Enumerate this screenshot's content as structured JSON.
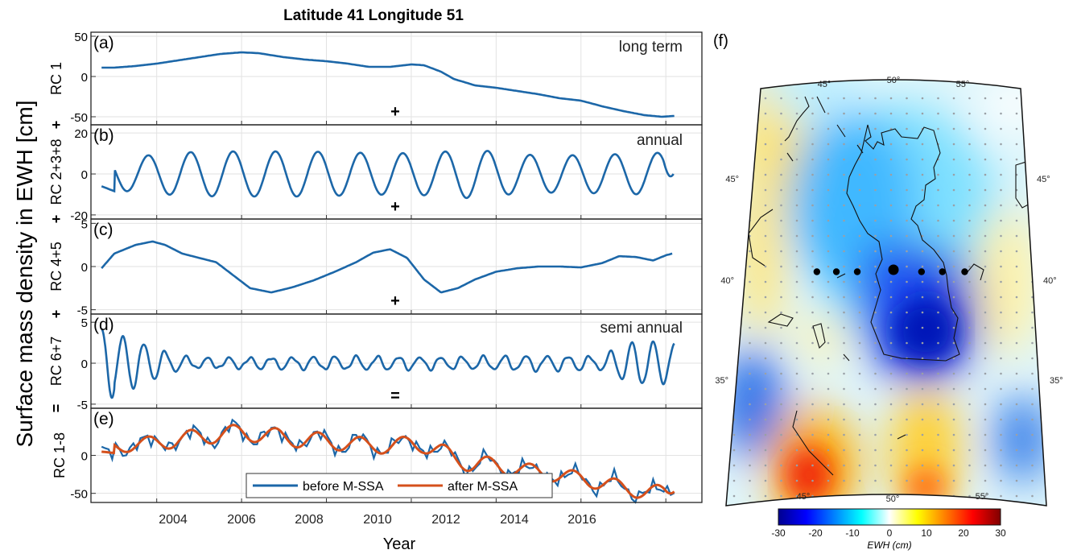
{
  "title": "Latitude 41 Longitude 51",
  "ylabel": "Surface mass density in EWH [cm]",
  "xlabel": "Year",
  "x_ticks": [
    "2004",
    "2006",
    "2008",
    "2010",
    "2012",
    "2014",
    "2016"
  ],
  "colors": {
    "before": "#1c67a8",
    "after": "#d5501c"
  },
  "chart_data": [
    {
      "type": "line",
      "panel": "(a)",
      "ylabel": "RC 1",
      "annotation": "long term",
      "ylim": [
        -60,
        55
      ],
      "y_ticks": [
        "50",
        "0",
        "-50"
      ],
      "operator": "+",
      "series": [
        {
          "x": [
            2002.7,
            2003.0,
            2003.5,
            2004.0,
            2004.5,
            2005.0,
            2005.5,
            2006.0,
            2006.4,
            2007.0,
            2007.5,
            2008.0,
            2008.5,
            2009.0,
            2009.5,
            2010.0,
            2010.3,
            2010.7,
            2011.0,
            2011.5,
            2012.0,
            2012.5,
            2013.0,
            2013.5,
            2014.0,
            2014.5,
            2015.0,
            2015.5,
            2015.9,
            2016.2
          ],
          "y": [
            11,
            11,
            13,
            16,
            20,
            24,
            28,
            30,
            29,
            24,
            21,
            19,
            16,
            12,
            12,
            15,
            14,
            6,
            -3,
            -11,
            -14,
            -18,
            -22,
            -27,
            -30,
            -37,
            -43,
            -48,
            -50,
            -49
          ]
        }
      ]
    },
    {
      "type": "line",
      "panel": "(b)",
      "ylabel": "RC 2+3+8",
      "annotation": "annual",
      "ylim": [
        -22,
        24
      ],
      "y_ticks": [
        "20",
        "0",
        "-20"
      ],
      "operator": "+",
      "series": [
        {
          "amplitude": [
            8,
            8.5,
            10.5,
            11,
            11,
            11,
            10.5,
            10,
            10.5,
            12,
            9.5,
            9,
            9.5,
            10,
            11,
            11
          ],
          "phase_start": 2003.0,
          "phase_step": 1.0,
          "x_start": 2002.7,
          "x_end": 2016.18,
          "end_value": 0
        }
      ]
    },
    {
      "type": "line",
      "panel": "(c)",
      "ylabel": "RC 4+5",
      "annotation": "",
      "ylim": [
        -5.5,
        5.5
      ],
      "y_ticks": [
        "5",
        "0",
        "-5"
      ],
      "operator": "+",
      "series": [
        {
          "x": [
            2002.7,
            2003.0,
            2003.5,
            2003.9,
            2004.2,
            2004.6,
            2005.0,
            2005.4,
            2005.8,
            2006.2,
            2006.7,
            2007.2,
            2007.7,
            2008.2,
            2008.7,
            2009.1,
            2009.5,
            2009.9,
            2010.3,
            2010.7,
            2011.1,
            2011.5,
            2012.0,
            2012.5,
            2013.0,
            2013.5,
            2014.0,
            2014.5,
            2014.9,
            2015.3,
            2015.7,
            2016.0,
            2016.15
          ],
          "y": [
            -0.2,
            1.5,
            2.5,
            2.9,
            2.5,
            1.5,
            1.0,
            0.5,
            -1.0,
            -2.5,
            -3.0,
            -2.4,
            -1.6,
            -0.6,
            0.5,
            1.6,
            2.0,
            1.0,
            -1.5,
            -3.0,
            -2.5,
            -1.5,
            -0.6,
            -0.2,
            0.0,
            0.0,
            -0.1,
            0.4,
            1.2,
            1.1,
            0.7,
            1.3,
            1.5
          ]
        }
      ]
    },
    {
      "type": "line",
      "panel": "(d)",
      "ylabel": "RC 6+7",
      "annotation": "semi annual",
      "ylim": [
        -5.5,
        6
      ],
      "y_ticks": [
        "5",
        "0",
        "-5"
      ],
      "operator": "=",
      "series": [
        {
          "x_start": 2002.7,
          "x_end": 2016.2,
          "period": 0.5,
          "envelope_x": [
            2002.7,
            2003.3,
            2003.9,
            2004.5,
            2005.0,
            2007.0,
            2009.0,
            2011.0,
            2013.0,
            2014.5,
            2014.8,
            2015.2,
            2015.6,
            2016.2
          ],
          "envelope_a": [
            3.5,
            3.3,
            2.0,
            0.9,
            0.6,
            0.7,
            0.8,
            0.7,
            0.9,
            0.8,
            1.7,
            2.5,
            2.6,
            2.4
          ]
        }
      ]
    },
    {
      "type": "line",
      "panel": "(e)",
      "ylabel": "RC 1-8",
      "annotation": "",
      "ylim": [
        -62,
        62
      ],
      "y_ticks": [
        "0",
        "-50"
      ],
      "operator": "",
      "legend": {
        "position": "bottom-center"
      },
      "series": [
        {
          "name": "before M-SSA"
        },
        {
          "name": "after M-SSA"
        }
      ]
    }
  ],
  "map": {
    "panel": "(f)",
    "lon_labels_top": [
      "45°",
      "50°",
      "55°"
    ],
    "lon_labels_bottom": [
      "45°",
      "50°",
      "55°"
    ],
    "lat_labels_left": [
      "45°",
      "40°",
      "35°"
    ],
    "lat_labels_right": [
      "45°",
      "40°",
      "35°"
    ],
    "colorbar": {
      "ticks": [
        "-30",
        "-20",
        "-10",
        "0",
        "10",
        "20",
        "30"
      ],
      "label": "EWH (cm)",
      "range": [
        -30,
        30
      ]
    },
    "points": [
      {
        "lon": 45.5,
        "lat": 40.9
      },
      {
        "lon": 46.9,
        "lat": 40.9
      },
      {
        "lon": 48.4,
        "lat": 40.9
      },
      {
        "lon": 51.0,
        "lat": 41.0,
        "highlight": true
      },
      {
        "lon": 53.1,
        "lat": 40.9
      },
      {
        "lon": 54.6,
        "lat": 40.9
      },
      {
        "lon": 56.2,
        "lat": 40.9
      }
    ]
  }
}
